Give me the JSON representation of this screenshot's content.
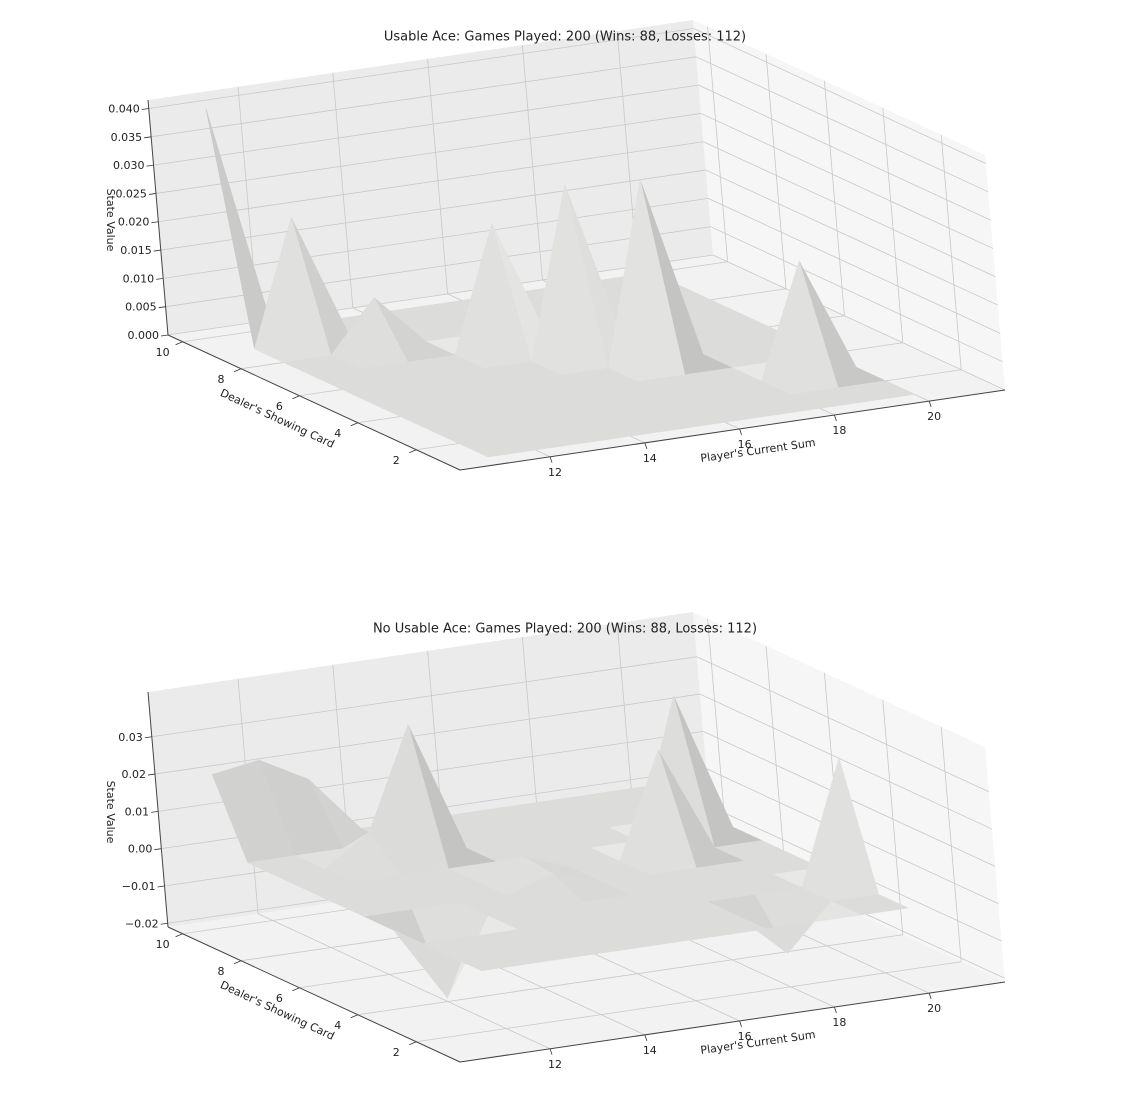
{
  "chart_data": [
    {
      "type": "surface",
      "title": "Usable Ace: Games Played: 200 (Wins: 88, Losses: 112)",
      "xlabel": "Player's Current Sum",
      "ylabel": "Dealer's Showing Card",
      "zlabel": "State Value",
      "x": [
        11,
        12,
        13,
        14,
        15,
        16,
        17,
        18,
        19,
        20
      ],
      "y": [
        1,
        2,
        3,
        4,
        5,
        6,
        7,
        8,
        9,
        10
      ],
      "z": [
        [
          0,
          0,
          0,
          0,
          0,
          0,
          0,
          0,
          0,
          0
        ],
        [
          0,
          0,
          0,
          0,
          0,
          0,
          0,
          0,
          0,
          0
        ],
        [
          0,
          0,
          0,
          0,
          0,
          0,
          0,
          0,
          0.02,
          0
        ],
        [
          0,
          0,
          0,
          0,
          0,
          0,
          0,
          0,
          0,
          0
        ],
        [
          0,
          0,
          0,
          0,
          0,
          0,
          0.032,
          0,
          0,
          0
        ],
        [
          0,
          0,
          0,
          0,
          0,
          0.03,
          0,
          0,
          0,
          0
        ],
        [
          0,
          0,
          0,
          0,
          0.022,
          0,
          0,
          0,
          0,
          0
        ],
        [
          0,
          0,
          0.009,
          0,
          0,
          0,
          0,
          0,
          0,
          0
        ],
        [
          0,
          0.022,
          0,
          0,
          0,
          0,
          0,
          0,
          0,
          0
        ],
        [
          0.04,
          0,
          0,
          0,
          0,
          0,
          0,
          0,
          0,
          0
        ]
      ],
      "color": "#dcdcda",
      "xlim": [
        10.1,
        21.6
      ],
      "ylim": [
        0.5,
        10.5
      ],
      "zlim": [
        0,
        0.0415
      ],
      "xticks": [
        12,
        14,
        16,
        18,
        20
      ],
      "yticks": [
        2,
        4,
        6,
        8,
        10
      ],
      "zticks": [
        {
          "value": 0,
          "label": "0.000"
        },
        0.005,
        {
          "value": 0.01,
          "label": "0.010"
        },
        0.015,
        {
          "value": 0.02,
          "label": "0.020"
        },
        0.025,
        {
          "value": 0.03,
          "label": "0.030"
        },
        0.035,
        {
          "value": 0.04,
          "label": "0.040"
        }
      ],
      "grid": true
    },
    {
      "type": "surface",
      "title": "No Usable Ace: Games Played: 200 (Wins: 88, Losses: 112)",
      "xlabel": "Player's Current Sum",
      "ylabel": "Dealer's Showing Card",
      "zlabel": "State Value",
      "x": [
        11,
        12,
        13,
        14,
        15,
        16,
        17,
        18,
        19,
        20
      ],
      "y": [
        1,
        2,
        3,
        4,
        5,
        6,
        7,
        8,
        9,
        10
      ],
      "z": [
        [
          0,
          0,
          0,
          0,
          0,
          0,
          0,
          0,
          0,
          0
        ],
        [
          0,
          0,
          0,
          0,
          0,
          0,
          0,
          -0.012,
          0,
          0
        ],
        [
          0,
          0,
          0,
          0,
          0,
          0,
          0,
          0,
          0,
          0.033
        ],
        [
          0,
          -0.02,
          0,
          0,
          0,
          0,
          0,
          0,
          0,
          0
        ],
        [
          0,
          0,
          0,
          0,
          0.004,
          0,
          0,
          0,
          0,
          0
        ],
        [
          0,
          0,
          0,
          0,
          0.005,
          0,
          0,
          0.028,
          0,
          0
        ],
        [
          0,
          0,
          0,
          0,
          0,
          0,
          0,
          0,
          0.037,
          0
        ],
        [
          0,
          0,
          0.008,
          0.035,
          0,
          0,
          0,
          0,
          0,
          0
        ],
        [
          0,
          0,
          0,
          0,
          0,
          0,
          0,
          0,
          0,
          0
        ],
        [
          0.02,
          0.022,
          0.015,
          0,
          0,
          0,
          0,
          0,
          0,
          0
        ]
      ],
      "color": "#dcdcda",
      "xlim": [
        10.1,
        21.6
      ],
      "ylim": [
        0.5,
        10.5
      ],
      "zlim": [
        -0.021,
        0.042
      ],
      "xticks": [
        12,
        14,
        16,
        18,
        20
      ],
      "yticks": [
        2,
        4,
        6,
        8,
        10
      ],
      "zticks": [
        {
          "value": -0.02,
          "label": "−0.02"
        },
        {
          "value": -0.01,
          "label": "−0.01"
        },
        {
          "value": 0,
          "label": "0.00"
        },
        0.01,
        0.02,
        0.03
      ],
      "grid": true
    }
  ]
}
